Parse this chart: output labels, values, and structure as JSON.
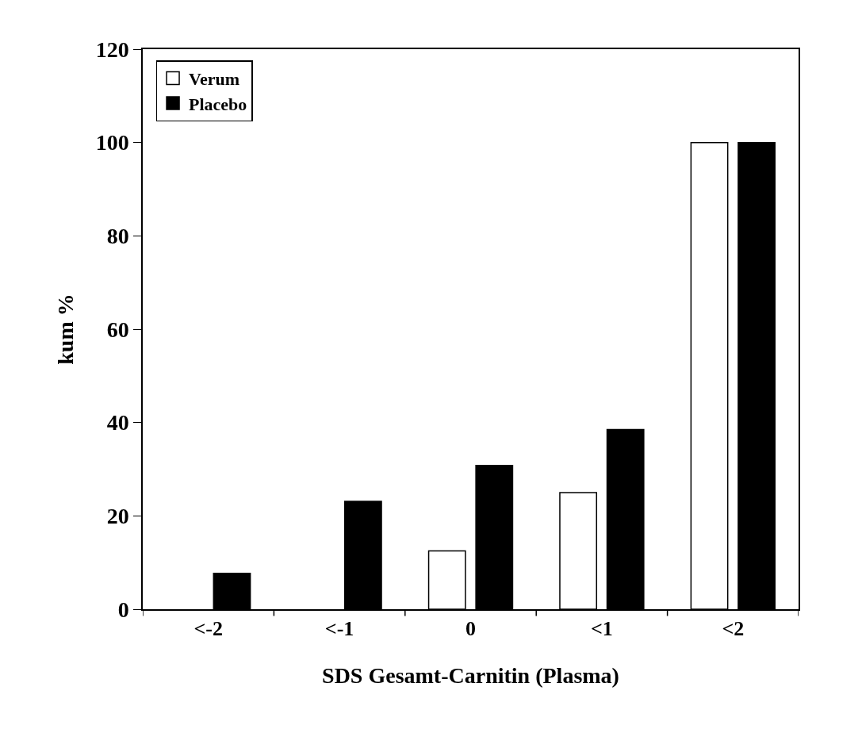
{
  "chart_data": {
    "type": "bar",
    "xlabel": "SDS Gesamt-Carnitin (Plasma)",
    "ylabel": "kum %",
    "categories": [
      "<-2",
      "<-1",
      "0",
      "<1",
      "<2"
    ],
    "series": [
      {
        "name": "Verum",
        "color": "#ffffff",
        "values": [
          0,
          0,
          12.5,
          25,
          100
        ]
      },
      {
        "name": "Placebo",
        "color": "#000000",
        "values": [
          7.7,
          23.1,
          30.8,
          38.5,
          100
        ]
      }
    ],
    "ylim": [
      0,
      120
    ],
    "yticks": [
      0,
      20,
      40,
      60,
      80,
      100,
      120
    ],
    "grid": false,
    "legend": "top left"
  }
}
